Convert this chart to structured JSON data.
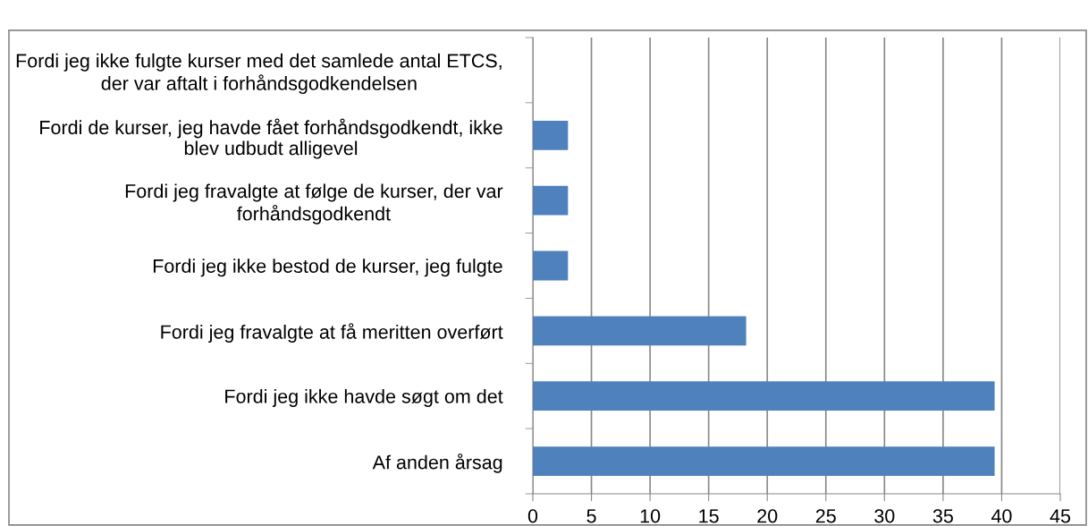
{
  "chart_data": {
    "type": "bar",
    "orientation": "horizontal",
    "categories": [
      "Fordi jeg ikke fulgte kurser med det samlede antal ETCS, der var aftalt i forhåndsgodkendelsen",
      "Fordi de kurser, jeg havde fået forhåndsgodkendt, ikke blev udbudt alligevel",
      "Fordi jeg fravalgte at følge de kurser, der var forhåndsgodkendt",
      "Fordi jeg ikke bestod de kurser, jeg fulgte",
      "Fordi jeg fravalgte at få meritten overført",
      "Fordi jeg ikke havde søgt om det",
      "Af anden årsag"
    ],
    "values": [
      0,
      3,
      3,
      3,
      18.2,
      39.4,
      39.4
    ],
    "color": "#4f81bd",
    "xlim": [
      0,
      45
    ],
    "xticks": [
      0,
      5,
      10,
      15,
      20,
      25,
      30,
      35,
      40,
      45
    ],
    "grid": "x",
    "legend": false
  }
}
